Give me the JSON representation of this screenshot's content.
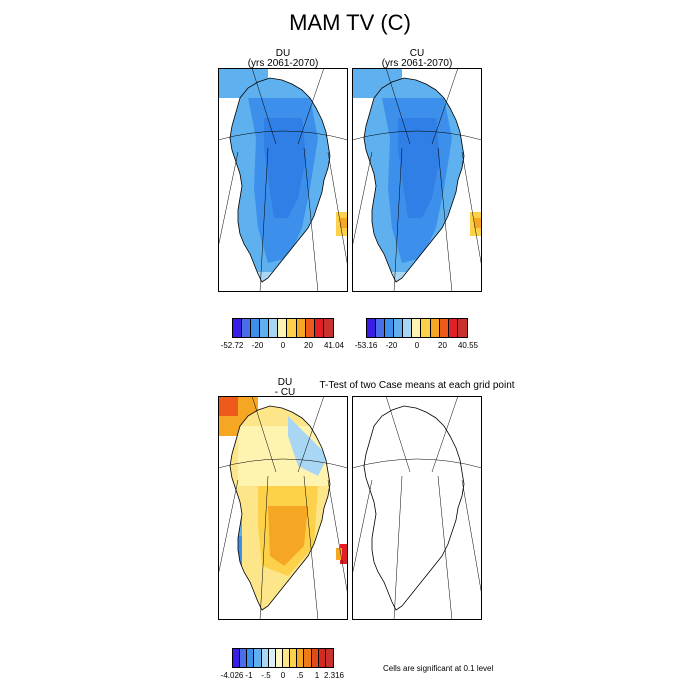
{
  "title": "MAM TV (C)",
  "panels": {
    "du": {
      "title_line1": "DU",
      "title_line2": "(yrs 2061-2070)"
    },
    "cu": {
      "title_line1": "CU",
      "title_line2": "(yrs 2061-2070)"
    },
    "diff": {
      "title_line1": "DU",
      "title_line2": "- CU"
    },
    "ttest": {
      "title": "T-Test of two Case means at each grid point"
    }
  },
  "colorbars": {
    "du": {
      "labels": [
        "-52.72",
        "-20",
        "0",
        "20",
        "41.04"
      ],
      "colors": [
        "#3a1ee6",
        "#4a6ee8",
        "#3c8fea",
        "#5eb1ee",
        "#a9d6f2",
        "#fff3b0",
        "#fdd24a",
        "#f5a623",
        "#ee5a1a",
        "#e21f26",
        "#c8312c"
      ]
    },
    "cu": {
      "labels": [
        "-53.16",
        "-20",
        "0",
        "20",
        "40.55"
      ],
      "colors": [
        "#3a1ee6",
        "#4a6ee8",
        "#3c8fea",
        "#5eb1ee",
        "#a9d6f2",
        "#fff3b0",
        "#fdd24a",
        "#f5a623",
        "#ee5a1a",
        "#e21f26",
        "#c8312c"
      ]
    },
    "diff": {
      "labels": [
        "-4.026",
        "-1",
        "-.5",
        "0",
        ".5",
        "1",
        "2.316"
      ],
      "colors": [
        "#3a1ee6",
        "#4a6ee8",
        "#3c8fea",
        "#5eb1ee",
        "#a9d6f2",
        "#d9eef8",
        "#fff7c0",
        "#fde68a",
        "#fdd24a",
        "#f5a623",
        "#ee7a1a",
        "#e24a1a",
        "#d22a1f",
        "#c8312c"
      ]
    }
  },
  "significance_note": "Cells are significant at 0.1 level"
}
